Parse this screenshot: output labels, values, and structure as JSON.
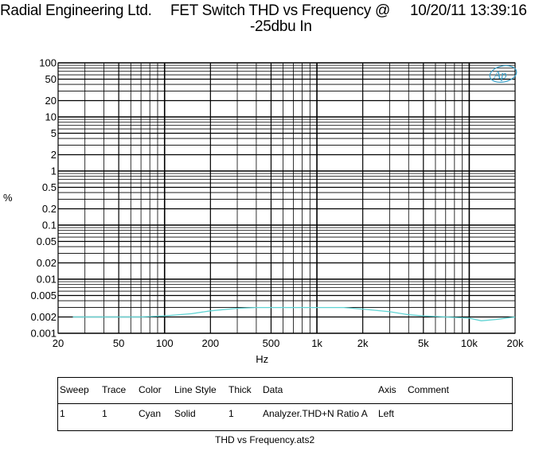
{
  "header": {
    "company": "Radial Engineering Ltd.",
    "title_line1": "FET Switch THD vs Frequency @",
    "title_line2": "-25dbu In",
    "datetime": "10/20/11 13:39:16"
  },
  "logo_text": "Ap",
  "chart_data": {
    "type": "line",
    "title": "FET Switch THD vs Frequency @ -25dbu In",
    "xlabel": "Hz",
    "ylabel": "%",
    "xscale": "log",
    "yscale": "log",
    "xlim": [
      20,
      20000
    ],
    "ylim": [
      0.001,
      100
    ],
    "grid": true,
    "x_tick_labels": [
      "20",
      "50",
      "100",
      "200",
      "500",
      "1k",
      "2k",
      "5k",
      "10k",
      "20k"
    ],
    "y_tick_labels": [
      "100",
      "50",
      "20",
      "10",
      "5",
      "2",
      "1",
      "0.5",
      "0.2",
      "0.1",
      "0.05",
      "0.02",
      "0.01",
      "0.005",
      "0.002",
      "0.001"
    ],
    "series": [
      {
        "color": "#5fd3d3",
        "x": [
          25,
          30,
          40,
          50,
          70,
          100,
          150,
          200,
          300,
          400,
          500,
          700,
          1000,
          1500,
          2000,
          3000,
          4000,
          5000,
          7000,
          10000,
          12000,
          15000,
          20000
        ],
        "y": [
          0.002,
          0.002,
          0.002,
          0.002,
          0.002,
          0.0021,
          0.0023,
          0.0026,
          0.0029,
          0.003,
          0.003,
          0.003,
          0.003,
          0.003,
          0.0028,
          0.0025,
          0.0022,
          0.0021,
          0.002,
          0.0019,
          0.0017,
          0.0018,
          0.002
        ]
      }
    ]
  },
  "legend": {
    "headers": [
      "Sweep",
      "Trace",
      "Color",
      "Line Style",
      "Thick",
      "Data",
      "Axis",
      "Comment"
    ],
    "rows": [
      [
        "1",
        "1",
        "Cyan",
        "Solid",
        "1",
        "Analyzer.THD+N Ratio A",
        "Left",
        ""
      ]
    ]
  },
  "footer": "THD vs Frequency.ats2"
}
